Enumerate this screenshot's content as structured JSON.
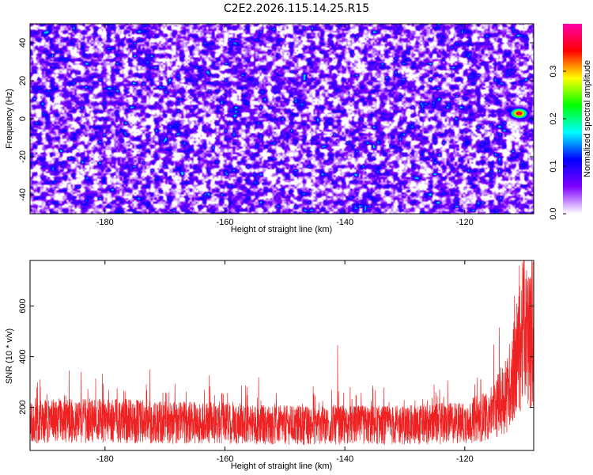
{
  "title": "C2E2.2026.115.14.25.R15",
  "chart_data": [
    {
      "type": "heatmap",
      "xlabel": "Height of straight line (km)",
      "ylabel": "Frequency (Hz)",
      "xlim": [
        -192.5,
        -108.5
      ],
      "ylim": [
        -50,
        50
      ],
      "xticks": [
        -180,
        -160,
        -140,
        -120
      ],
      "yticks": [
        -40,
        -20,
        0,
        20,
        40
      ],
      "colorbar": {
        "label": "Normalized spectral amplitude",
        "range": [
          0,
          0.4
        ],
        "ticks": [
          "0.0",
          "0.1",
          "0.2",
          "0.3"
        ],
        "colors": [
          "#ffffff",
          "#8000ff",
          "#0000ff",
          "#00ffff",
          "#00ff00",
          "#ffff00",
          "#ff0000",
          "#ff00aa"
        ]
      },
      "peak": {
        "x": -111,
        "y": 3,
        "value": 0.38
      }
    },
    {
      "type": "line",
      "xlabel": "Height of straight line (km)",
      "ylabel": "SNR (10 * v/v)",
      "xlim": [
        -192.5,
        -108.5
      ],
      "ylim": [
        30,
        780
      ],
      "xticks": [
        -180,
        -160,
        -140,
        -120
      ],
      "yticks": [
        200,
        400,
        600
      ],
      "grid": false,
      "series": [
        {
          "color": "#ee2222",
          "points": [
            [
              -192.5,
              140
            ],
            [
              -180,
              150
            ],
            [
              -170,
              140
            ],
            [
              -160,
              140
            ],
            [
              -150,
              130
            ],
            [
              -140,
              130
            ],
            [
              -130,
              130
            ],
            [
              -120,
              140
            ],
            [
              -116,
              170
            ],
            [
              -113,
              250
            ],
            [
              -111,
              420
            ],
            [
              -110,
              520
            ],
            [
              -109,
              460
            ],
            [
              -108.5,
              430
            ]
          ],
          "peaks": [
            [
              -110.9,
              760
            ],
            [
              -111.7,
              640
            ],
            [
              -141.2,
              445
            ],
            [
              -172.5,
              350
            ],
            [
              -184,
              340
            ]
          ]
        }
      ]
    }
  ]
}
